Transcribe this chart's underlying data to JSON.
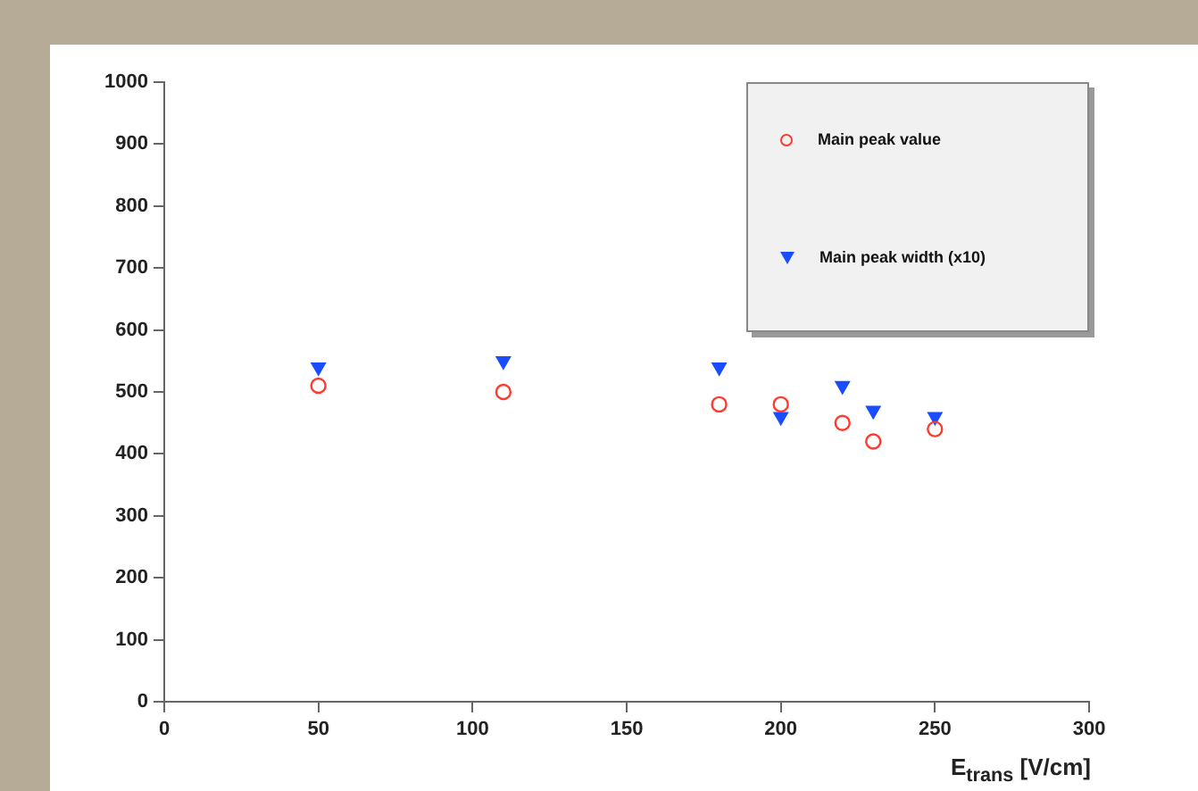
{
  "chart_data": {
    "type": "scatter",
    "xlabel": "E$_{trans}$ [V/cm]",
    "xlim": [
      0,
      300
    ],
    "xticks": [
      0,
      50,
      100,
      150,
      200,
      250,
      300
    ],
    "ylim": [
      0,
      1000
    ],
    "yticks": [
      0,
      100,
      200,
      300,
      400,
      500,
      600,
      700,
      800,
      900,
      1000
    ],
    "grid": false,
    "legend": "top right",
    "series": [
      {
        "name": "Main peak value",
        "color": "#ff3b30",
        "marker": "circle",
        "x": [
          50,
          110,
          180,
          200,
          220,
          230,
          250
        ],
        "values": [
          510,
          500,
          480,
          480,
          450,
          420,
          440
        ]
      },
      {
        "name": "Main peak width (x10)",
        "color": "#1a4dff",
        "marker": "triangle",
        "x": [
          50,
          110,
          180,
          200,
          220,
          230,
          250
        ],
        "values": [
          540,
          550,
          540,
          460,
          510,
          470,
          460
        ]
      }
    ]
  }
}
